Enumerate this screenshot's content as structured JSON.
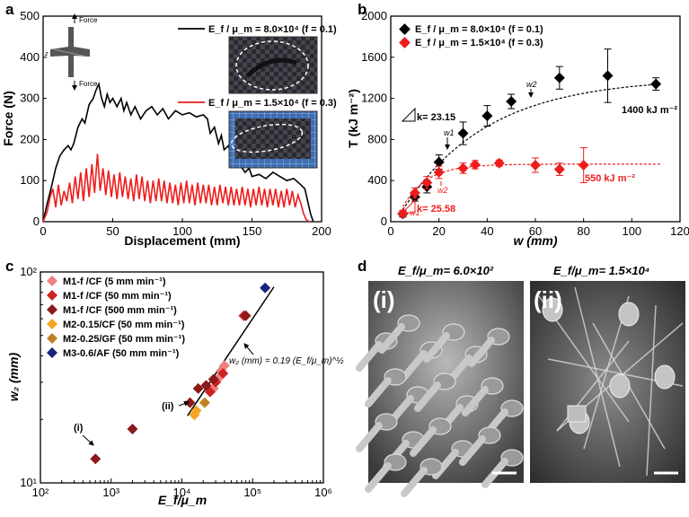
{
  "colors": {
    "black": "#000000",
    "red": "#ee1c1c",
    "c_pink": "#f08080",
    "c_crimson": "#cc2222",
    "c_maroon": "#8b1a1a",
    "c_orange": "#f5a623",
    "c_brown": "#c08020",
    "c_navy": "#1a237e",
    "sem_bg": "#5a5a5a"
  },
  "panels": {
    "a": "a",
    "b": "b",
    "c": "c",
    "d": "d"
  },
  "chart_data": [
    {
      "panel": "a",
      "type": "line",
      "xlabel": "Displacement (mm)",
      "ylabel": "Force (N)",
      "xlim": [
        0,
        200
      ],
      "ylim": [
        0,
        500
      ],
      "xticks": [
        0,
        50,
        100,
        150,
        200
      ],
      "yticks": [
        0,
        100,
        200,
        300,
        400,
        500
      ],
      "xtick_labels": [
        "0",
        "50",
        "100",
        "150",
        "200"
      ],
      "ytick_labels": [
        "0",
        "100",
        "200",
        "300",
        "400",
        "500"
      ],
      "legend": [
        {
          "label": "E_f / μ_m = 8.0×10⁴ (f = 0.1)",
          "color": "#000000"
        },
        {
          "label": "E_f / μ_m = 1.5×10⁴ (f = 0.3)",
          "color": "#ee1c1c"
        }
      ],
      "inset_labels": {
        "force_top": "Force",
        "force_bottom": "Force",
        "z_axis": "z"
      },
      "series": [
        {
          "name": "f = 0.1",
          "color": "#000000",
          "x": [
            0,
            3,
            6,
            9,
            12,
            15,
            18,
            20,
            22,
            25,
            28,
            30,
            33,
            36,
            38,
            40,
            42,
            44,
            46,
            48,
            50,
            53,
            56,
            58,
            60,
            63,
            66,
            70,
            74,
            78,
            82,
            86,
            90,
            95,
            100,
            105,
            110,
            115,
            118,
            120,
            123,
            126,
            128,
            130,
            133,
            136,
            138,
            140,
            142,
            145,
            148,
            150,
            155,
            160,
            165,
            170,
            175,
            180,
            185,
            188,
            190,
            192,
            194
          ],
          "y": [
            0,
            45,
            85,
            130,
            160,
            175,
            185,
            175,
            190,
            230,
            250,
            240,
            285,
            300,
            320,
            335,
            300,
            280,
            310,
            290,
            300,
            280,
            300,
            270,
            290,
            260,
            280,
            250,
            270,
            280,
            260,
            275,
            250,
            270,
            260,
            265,
            255,
            260,
            250,
            215,
            230,
            190,
            210,
            175,
            185,
            155,
            140,
            150,
            135,
            120,
            130,
            110,
            115,
            105,
            120,
            110,
            100,
            105,
            90,
            80,
            50,
            20,
            0
          ]
        },
        {
          "name": "f = 0.3",
          "color": "#ee1c1c",
          "x": [
            0,
            3,
            5,
            7,
            9,
            11,
            13,
            15,
            17,
            19,
            21,
            23,
            25,
            27,
            29,
            31,
            33,
            35,
            37,
            39,
            41,
            43,
            45,
            47,
            49,
            51,
            53,
            55,
            57,
            59,
            61,
            63,
            65,
            67,
            69,
            71,
            73,
            75,
            77,
            79,
            81,
            83,
            85,
            87,
            89,
            91,
            93,
            95,
            97,
            99,
            101,
            103,
            105,
            107,
            109,
            111,
            113,
            115,
            117,
            119,
            121,
            123,
            125,
            127,
            129,
            131,
            133,
            135,
            137,
            139,
            141,
            143,
            145,
            147,
            149,
            151,
            153,
            155,
            157,
            159,
            161,
            163,
            165,
            167,
            169,
            171,
            173,
            175,
            177,
            179,
            181,
            183,
            185,
            187,
            189,
            191
          ],
          "y": [
            0,
            25,
            60,
            80,
            35,
            90,
            40,
            75,
            50,
            95,
            45,
            110,
            55,
            120,
            50,
            130,
            60,
            140,
            70,
            165,
            75,
            130,
            65,
            125,
            60,
            115,
            55,
            120,
            60,
            110,
            55,
            105,
            50,
            115,
            55,
            110,
            50,
            100,
            45,
            100,
            50,
            105,
            50,
            100,
            45,
            95,
            45,
            90,
            40,
            95,
            45,
            100,
            45,
            90,
            40,
            95,
            45,
            90,
            45,
            90,
            40,
            85,
            40,
            90,
            45,
            85,
            40,
            85,
            40,
            80,
            40,
            85,
            40,
            80,
            35,
            80,
            40,
            85,
            40,
            80,
            35,
            80,
            40,
            80,
            35,
            75,
            35,
            80,
            40,
            75,
            35,
            65,
            45,
            20,
            5,
            0
          ]
        }
      ]
    },
    {
      "panel": "b",
      "type": "scatter",
      "xlabel": "w (mm)",
      "ylabel": "T (kJ m⁻²)",
      "xlim": [
        0,
        120
      ],
      "ylim": [
        0,
        2000
      ],
      "xticks": [
        0,
        20,
        40,
        60,
        80,
        100,
        120
      ],
      "yticks": [
        0,
        400,
        800,
        1200,
        1600,
        2000
      ],
      "xtick_labels": [
        "0",
        "20",
        "40",
        "60",
        "80",
        "100",
        "120"
      ],
      "ytick_labels": [
        "0",
        "400",
        "800",
        "1200",
        "1600",
        "2000"
      ],
      "legend": [
        {
          "label": "E_f / μ_m = 8.0×10⁴ (f = 0.1)",
          "color": "#000000"
        },
        {
          "label": "E_f / μ_m = 1.5×10⁴ (f = 0.3)",
          "color": "#ee1c1c"
        }
      ],
      "annotations": {
        "slope_black": "k= 23.15",
        "slope_red": "k= 25.58",
        "plateau_black": "1400 kJ m⁻²",
        "plateau_red": "550 kJ m⁻²",
        "w1_black": "w1",
        "w2_black": "w2",
        "w1_red": "w1",
        "w2_red": "w2"
      },
      "series": [
        {
          "name": "f = 0.1",
          "color": "#000000",
          "x": [
            5,
            10,
            15,
            20,
            30,
            40,
            50,
            70,
            90,
            110
          ],
          "y": [
            75,
            240,
            340,
            580,
            860,
            1030,
            1170,
            1400,
            1420,
            1340
          ],
          "err": [
            30,
            40,
            60,
            70,
            110,
            100,
            70,
            110,
            260,
            60
          ]
        },
        {
          "name": "f = 0.3",
          "color": "#ee1c1c",
          "x": [
            5,
            10,
            15,
            20,
            30,
            35,
            45,
            60,
            70,
            80
          ],
          "y": [
            80,
            280,
            380,
            480,
            520,
            555,
            570,
            550,
            510,
            550
          ],
          "err": [
            30,
            50,
            60,
            60,
            50,
            40,
            30,
            70,
            60,
            170
          ]
        }
      ],
      "fit_black": {
        "plateau": 1400,
        "scale": 35
      },
      "fit_red": {
        "plateau": 560,
        "scale": 10
      }
    },
    {
      "panel": "c",
      "type": "scatter",
      "xlabel": "E_f/μ_m",
      "ylabel": "w₂ (mm)",
      "xscale": "log",
      "yscale": "log",
      "xlim": [
        100,
        1000000
      ],
      "ylim": [
        10,
        100
      ],
      "xticks": [
        100,
        1000,
        10000,
        100000,
        1000000
      ],
      "xtick_labels": [
        "10²",
        "10³",
        "10⁴",
        "10⁵",
        "10⁶"
      ],
      "yticks": [
        10,
        100
      ],
      "ytick_labels": [
        "10¹",
        "10²"
      ],
      "fit_label": "w₂ (mm) = 0.19 (E_f/μ_m)^½",
      "point_labels": {
        "i": "(i)",
        "ii": "(ii)"
      },
      "series": [
        {
          "name": "M1-f /CF (5 mm min⁻¹)",
          "color": "#f08080",
          "x": [
            28000,
            32000,
            36000,
            40000
          ],
          "y": [
            28,
            31,
            34,
            36
          ]
        },
        {
          "name": "M1-f /CF (50 mm min⁻¹)",
          "color": "#cc2222",
          "x": [
            25000,
            30000,
            38000,
            75000
          ],
          "y": [
            27,
            30,
            33,
            62
          ]
        },
        {
          "name": "M1-f /CF (500 mm min⁻¹)",
          "color": "#8b1a1a",
          "x": [
            600,
            2000,
            13000,
            17000,
            22000,
            28000,
            80000
          ],
          "y": [
            13,
            18,
            24,
            28,
            29,
            31,
            62
          ]
        },
        {
          "name": "M2-0.15/CF (50 mm min⁻¹)",
          "color": "#f5a623",
          "x": [
            15000,
            16000
          ],
          "y": [
            21,
            22
          ]
        },
        {
          "name": "M2-0.25/GF (50 mm min⁻¹)",
          "color": "#c08020",
          "x": [
            21000
          ],
          "y": [
            24
          ]
        },
        {
          "name": "M3-0.6/AF (50 mm min⁻¹)",
          "color": "#1a237e",
          "x": [
            150000
          ],
          "y": [
            84
          ]
        }
      ]
    }
  ],
  "sem": {
    "i": {
      "title": "E_f/μ_m= 6.0×10²",
      "label": "(i)"
    },
    "ii": {
      "title": "E_f/μ_m= 1.5×10⁴",
      "label": "(ii)"
    }
  }
}
